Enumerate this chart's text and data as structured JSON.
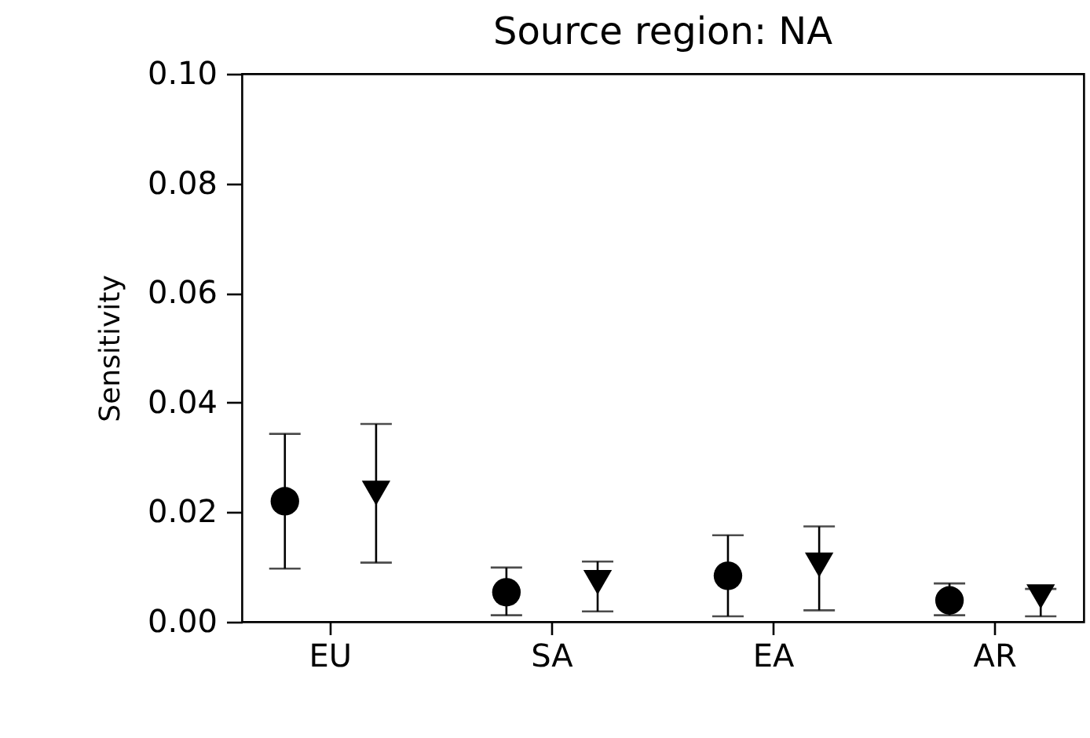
{
  "chart_data": {
    "type": "scatter",
    "title": "Source region: NA",
    "ylabel": "Sensitivity",
    "categories": [
      "EU",
      "SA",
      "EA",
      "AR"
    ],
    "ylim": [
      0,
      0.1
    ],
    "yticks": [
      {
        "value": 0,
        "label": "0.00"
      },
      {
        "value": 0.02,
        "label": "0.02"
      },
      {
        "value": 0.04,
        "label": "0.04"
      },
      {
        "value": 0.06,
        "label": "0.06"
      },
      {
        "value": 0.08,
        "label": "0.08"
      },
      {
        "value": 0.1,
        "label": "0.10"
      }
    ],
    "grid": false,
    "legend": false,
    "series": [
      {
        "color": "#000000",
        "marker": "circle",
        "values": [
          0.022,
          0.0054,
          0.0084,
          0.0039
        ],
        "errors": [
          [
            0.0097,
            0.0343
          ],
          [
            0.0012,
            0.0099
          ],
          [
            0.001,
            0.0158
          ],
          [
            0.0012,
            0.007
          ]
        ]
      },
      {
        "color": "#000000",
        "marker": "triangle-down",
        "values": [
          0.0235,
          0.0072,
          0.0104,
          0.0046
        ],
        "errors": [
          [
            0.0108,
            0.0361
          ],
          [
            0.0019,
            0.011
          ],
          [
            0.0021,
            0.0174
          ],
          [
            0.001,
            0.006
          ]
        ]
      }
    ]
  }
}
